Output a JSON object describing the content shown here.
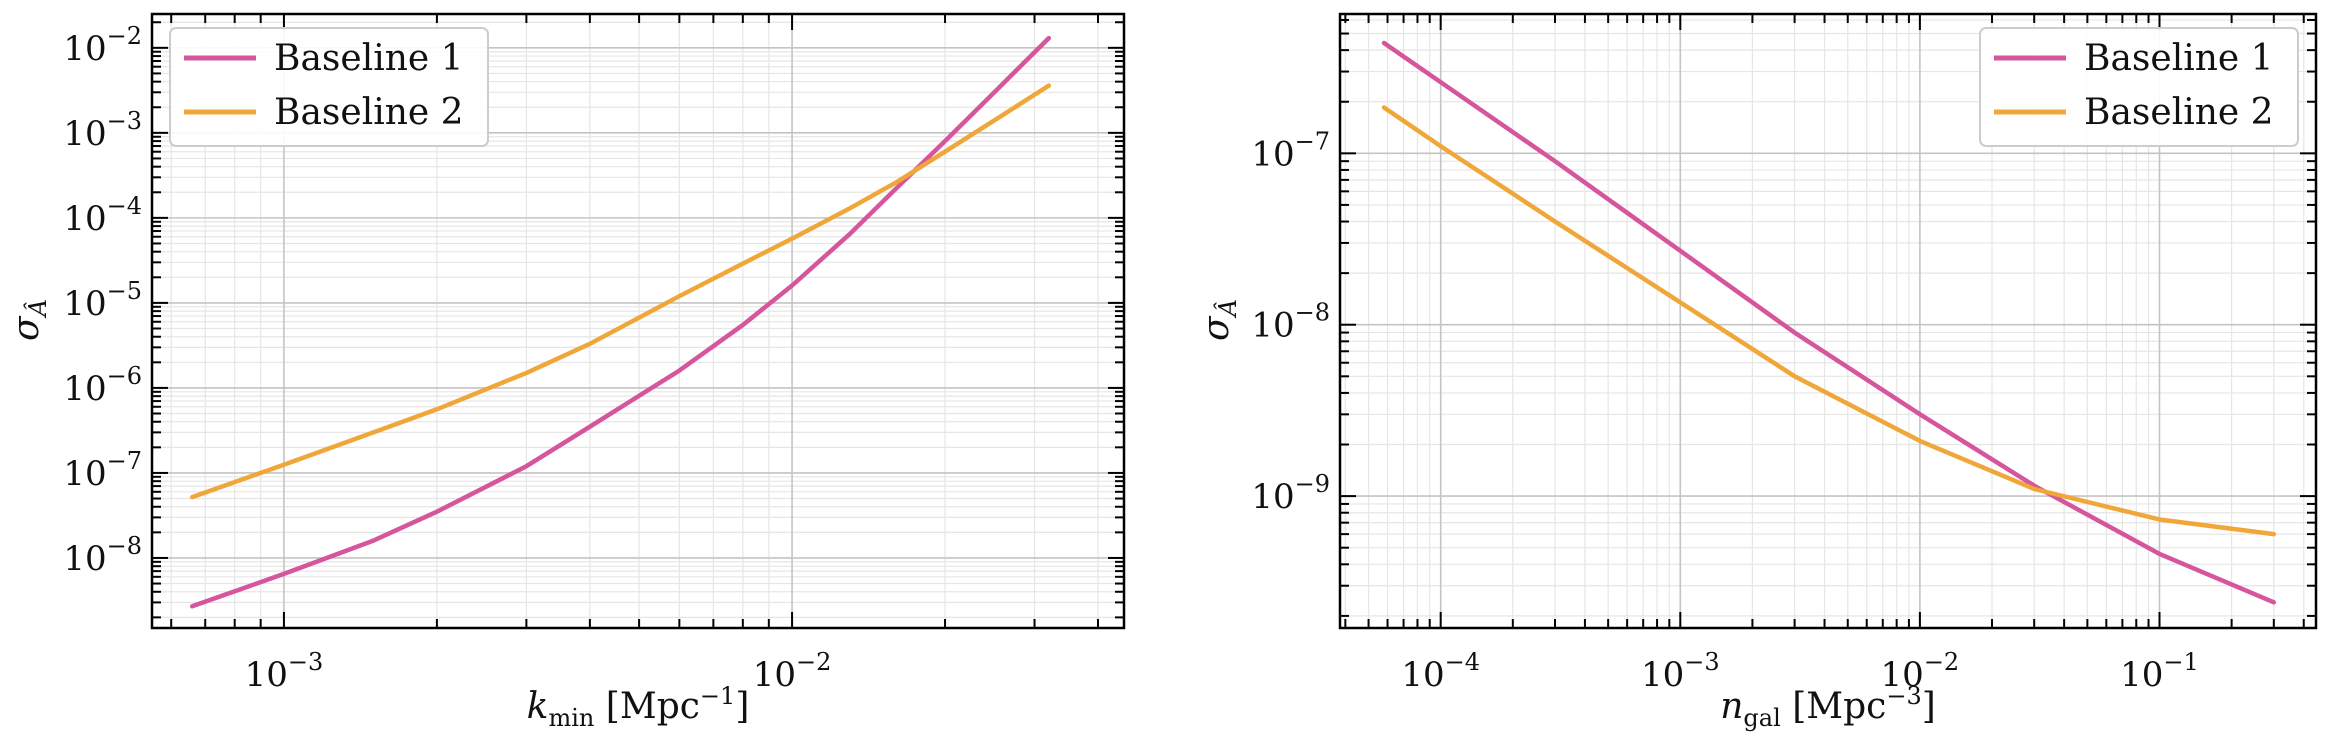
{
  "chart_data": [
    {
      "type": "line",
      "xscale": "log",
      "yscale": "log",
      "xlabel_symbol": "k",
      "xlabel_sub": "min",
      "xlabel_unit": "[Mpc",
      "xlabel_exp": "−1",
      "xlabel_close": "]",
      "ylabel_symbol": "σ",
      "ylabel_sub": "Â",
      "xlim": [
        0.00055,
        0.045
      ],
      "ylim": [
        1.5e-09,
        0.025
      ],
      "xticks": [
        {
          "value": 0.001,
          "base": "10",
          "exp": "−3"
        },
        {
          "value": 0.01,
          "base": "10",
          "exp": "−2"
        }
      ],
      "yticks": [
        {
          "value": 1e-08,
          "base": "10",
          "exp": "−8"
        },
        {
          "value": 1e-07,
          "base": "10",
          "exp": "−7"
        },
        {
          "value": 1e-06,
          "base": "10",
          "exp": "−6"
        },
        {
          "value": 1e-05,
          "base": "10",
          "exp": "−5"
        },
        {
          "value": 0.0001,
          "base": "10",
          "exp": "−4"
        },
        {
          "value": 0.001,
          "base": "10",
          "exp": "−3"
        },
        {
          "value": 0.01,
          "base": "10",
          "exp": "−2"
        }
      ],
      "grid": true,
      "legend_position": "upper-left",
      "series": [
        {
          "name": "Baseline 1",
          "color": "#d6569e",
          "x": [
            0.00066,
            0.001,
            0.0015,
            0.002,
            0.003,
            0.004,
            0.006,
            0.008,
            0.01,
            0.013,
            0.016,
            0.02,
            0.025,
            0.032
          ],
          "y": [
            2.7e-09,
            6.5e-09,
            1.6e-08,
            3.5e-08,
            1.2e-07,
            3.5e-07,
            1.6e-06,
            5.5e-06,
            1.6e-05,
            6.5e-05,
            0.00022,
            0.0008,
            0.003,
            0.013
          ]
        },
        {
          "name": "Baseline 2",
          "color": "#f0a73a",
          "x": [
            0.00066,
            0.001,
            0.0015,
            0.002,
            0.003,
            0.004,
            0.006,
            0.008,
            0.01,
            0.013,
            0.016,
            0.02,
            0.025,
            0.032
          ],
          "y": [
            5.2e-08,
            1.25e-07,
            3e-07,
            5.6e-07,
            1.5e-06,
            3.3e-06,
            1.2e-05,
            2.9e-05,
            5.7e-05,
            0.00013,
            0.00026,
            0.0006,
            0.0014,
            0.0036
          ]
        }
      ]
    },
    {
      "type": "line",
      "xscale": "log",
      "yscale": "log",
      "xlabel_symbol": "n",
      "xlabel_sub": "gal",
      "xlabel_unit": "[Mpc",
      "xlabel_exp": "−3",
      "xlabel_close": "]",
      "ylabel_symbol": "σ",
      "ylabel_sub": "Â",
      "xlim": [
        3.8e-05,
        0.45
      ],
      "ylim": [
        1.7e-10,
        6.5e-07
      ],
      "xticks": [
        {
          "value": 0.0001,
          "base": "10",
          "exp": "−4"
        },
        {
          "value": 0.001,
          "base": "10",
          "exp": "−3"
        },
        {
          "value": 0.01,
          "base": "10",
          "exp": "−2"
        },
        {
          "value": 0.1,
          "base": "10",
          "exp": "−1"
        }
      ],
      "yticks": [
        {
          "value": 1e-09,
          "base": "10",
          "exp": "−9"
        },
        {
          "value": 1e-08,
          "base": "10",
          "exp": "−8"
        },
        {
          "value": 1e-07,
          "base": "10",
          "exp": "−7"
        }
      ],
      "grid": true,
      "legend_position": "upper-right",
      "series": [
        {
          "name": "Baseline 1",
          "color": "#d6569e",
          "x": [
            5.8e-05,
            0.0001,
            0.0003,
            0.001,
            0.003,
            0.01,
            0.03,
            0.1,
            0.3
          ],
          "y": [
            4.4e-07,
            2.6e-07,
            9e-08,
            2.7e-08,
            9e-09,
            3e-09,
            1.15e-09,
            4.6e-10,
            2.4e-10
          ]
        },
        {
          "name": "Baseline 2",
          "color": "#f0a73a",
          "x": [
            5.8e-05,
            0.0001,
            0.0003,
            0.001,
            0.003,
            0.01,
            0.03,
            0.1,
            0.3
          ],
          "y": [
            1.85e-07,
            1.1e-07,
            4e-08,
            1.35e-08,
            5e-09,
            2.1e-09,
            1.1e-09,
            7.3e-10,
            6e-10
          ]
        }
      ]
    }
  ]
}
